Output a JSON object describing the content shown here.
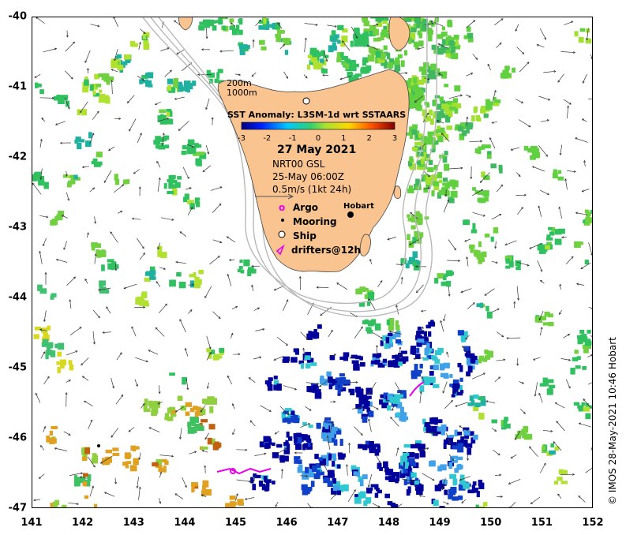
{
  "map": {
    "y_ticks": [
      "-40",
      "-41",
      "-42",
      "-43",
      "-44",
      "-45",
      "-46",
      "-47"
    ],
    "x_ticks": [
      "141",
      "142",
      "143",
      "144",
      "145",
      "146",
      "147",
      "148",
      "149",
      "150",
      "151",
      "152"
    ],
    "lon_range": [
      141,
      152
    ],
    "lat_range": [
      -40,
      -47
    ],
    "colors": {
      "land": "#f9c48f",
      "land_edge": "#444444",
      "bathy": "#b8b8b8",
      "arrow": "#333333"
    }
  },
  "legend": {
    "depth_200": "200m",
    "depth_1000": "1000m",
    "colorbar_title": "SST Anomaly: L3SM-1d wrt SSTAARS",
    "colorbar_ticks": [
      "-3",
      "-2",
      "-1",
      "0",
      "1",
      "2",
      "3"
    ],
    "date": "27 May 2021",
    "product": "NRT00 GSL",
    "time": "25-May 06:00Z",
    "scale": "0.5m/s (1kt 24h)",
    "argo": "Argo",
    "mooring": "Mooring",
    "ship": "Ship",
    "drifters": "drifters@12h",
    "argo_symbol": "o",
    "city": "Hobart"
  },
  "credit": "© IMOS 28-May-2021 10:46 Hobart"
}
